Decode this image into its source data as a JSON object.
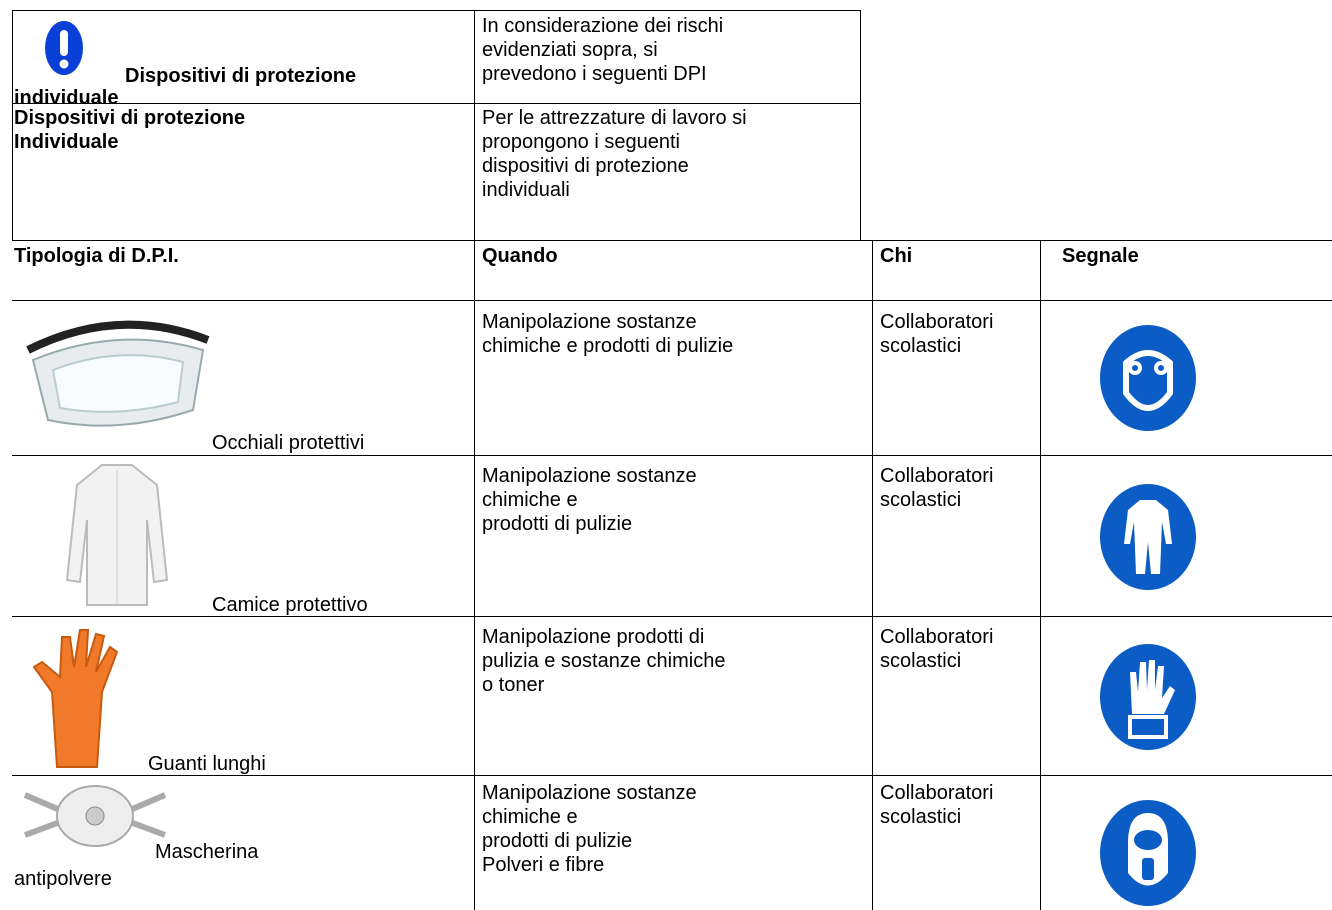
{
  "header": {
    "rows": [
      {
        "label": [
          "Dispositivi di protezione",
          "individuale"
        ],
        "text": [
          "In considerazione dei rischi",
          "evidenziati sopra,  si",
          "prevedono  i seguenti DPI"
        ]
      },
      {
        "label": [
          "Dispositivi di protezione",
          "Individuale"
        ],
        "text": [
          "Per le attrezzature di lavoro si",
          "propongono i seguenti",
          "dispositivi di protezione",
          "individuali"
        ]
      }
    ]
  },
  "table": {
    "columns": [
      "Tipologia di D.P.I.",
      "Quando",
      "Chi",
      "Segnale"
    ],
    "rows": [
      {
        "type": [
          "Occhiali protettivi"
        ],
        "when": [
          "Manipolazione sostanze",
          "chimiche e prodotti di pulizie"
        ],
        "who": [
          "Collaboratori",
          "scolastici"
        ]
      },
      {
        "type": [
          "Camice protettivo"
        ],
        "when": [
          "Manipolazione sostanze",
          "chimiche e",
          "prodotti di pulizie"
        ],
        "who": [
          "Collaboratori",
          "scolastici"
        ]
      },
      {
        "type": [
          "Guanti lunghi"
        ],
        "when": [
          "Manipolazione prodotti di",
          "pulizia e sostanze chimiche",
          "o toner"
        ],
        "who": [
          "Collaboratori",
          "scolastici"
        ]
      },
      {
        "type": [
          "Mascherina",
          "antipolvere"
        ],
        "when": [
          "Manipolazione sostanze",
          "chimiche e",
          "prodotti di pulizie",
          "Polveri e fibre"
        ],
        "who": [
          "Collaboratori",
          "scolastici"
        ]
      }
    ]
  }
}
